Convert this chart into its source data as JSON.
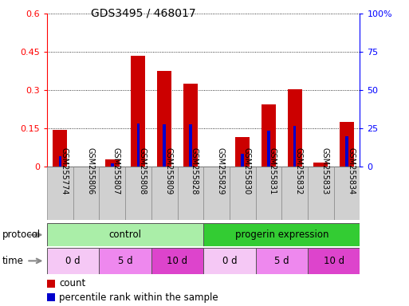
{
  "title": "GDS3495 / 468017",
  "samples": [
    "GSM255774",
    "GSM255806",
    "GSM255807",
    "GSM255808",
    "GSM255809",
    "GSM255828",
    "GSM255829",
    "GSM255830",
    "GSM255831",
    "GSM255832",
    "GSM255833",
    "GSM255834"
  ],
  "count_values": [
    0.145,
    0.0,
    0.028,
    0.435,
    0.375,
    0.325,
    0.0,
    0.115,
    0.245,
    0.305,
    0.018,
    0.175
  ],
  "percentile_values": [
    7.0,
    0.0,
    2.0,
    28.5,
    28.0,
    27.5,
    0.0,
    8.5,
    23.5,
    26.5,
    0.0,
    20.0
  ],
  "left_ylim": [
    0,
    0.6
  ],
  "right_ylim": [
    0,
    100
  ],
  "left_yticks": [
    0,
    0.15,
    0.3,
    0.45,
    0.6
  ],
  "right_yticks": [
    0,
    25,
    50,
    75,
    100
  ],
  "right_yticklabels": [
    "0",
    "25",
    "50",
    "75",
    "100%"
  ],
  "bar_color": "#cc0000",
  "percentile_color": "#0000cc",
  "bg_color": "#ffffff",
  "protocol_groups": [
    {
      "label": "control",
      "start": 0,
      "end": 6,
      "color": "#aaeea8"
    },
    {
      "label": "progerin expression",
      "start": 6,
      "end": 12,
      "color": "#33cc33"
    }
  ],
  "time_groups": [
    {
      "label": "0 d",
      "start": 0,
      "end": 2,
      "color": "#f5c8f5"
    },
    {
      "label": "5 d",
      "start": 2,
      "end": 4,
      "color": "#ee88ee"
    },
    {
      "label": "10 d",
      "start": 4,
      "end": 6,
      "color": "#dd44cc"
    },
    {
      "label": "0 d",
      "start": 6,
      "end": 8,
      "color": "#f5c8f5"
    },
    {
      "label": "5 d",
      "start": 8,
      "end": 10,
      "color": "#ee88ee"
    },
    {
      "label": "10 d",
      "start": 10,
      "end": 12,
      "color": "#dd44cc"
    }
  ],
  "protocol_label": "protocol",
  "time_label": "time",
  "legend_count_label": "count",
  "legend_percentile_label": "percentile rank within the sample",
  "bar_width": 0.55,
  "title_fontsize": 10,
  "tick_fontsize": 8,
  "label_fontsize": 8.5,
  "sample_fontsize": 7,
  "sample_box_color": "#d0d0d0"
}
